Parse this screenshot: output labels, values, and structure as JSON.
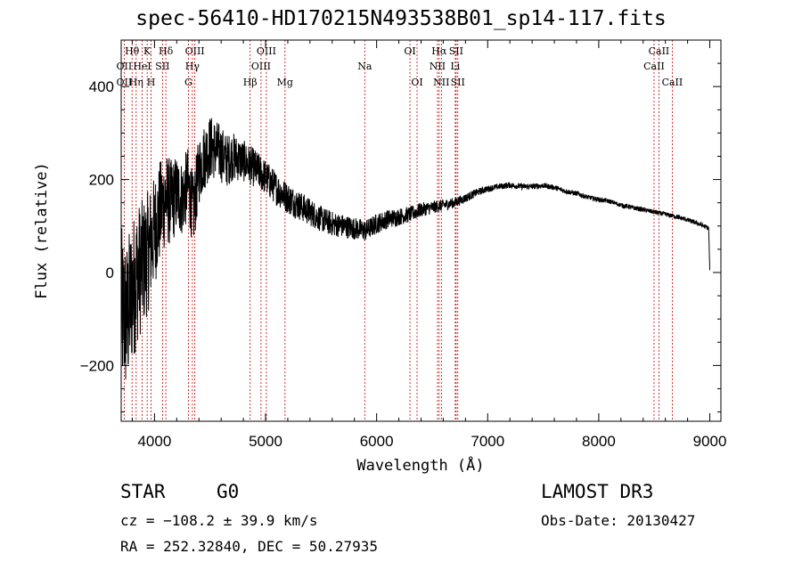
{
  "chart_data": {
    "type": "line",
    "title": "spec-56410-HD170215N493538B01_sp14-117.fits",
    "xlabel": "Wavelength (Å)",
    "ylabel": "Flux (relative)",
    "xlim": [
      3700,
      9100
    ],
    "ylim": [
      -320,
      500
    ],
    "xticks": [
      4000,
      5000,
      6000,
      7000,
      8000,
      9000
    ],
    "yticks": [
      -200,
      0,
      200,
      400
    ],
    "grid": false,
    "series": [
      {
        "name": "spectrum",
        "noise_amplitude": [
          [
            3700,
            180
          ],
          [
            3800,
            160
          ],
          [
            3900,
            140
          ],
          [
            4000,
            120
          ],
          [
            4200,
            85
          ],
          [
            4500,
            70
          ],
          [
            4800,
            45
          ],
          [
            5000,
            38
          ],
          [
            5500,
            28
          ],
          [
            6000,
            22
          ],
          [
            6500,
            14
          ],
          [
            7000,
            7
          ],
          [
            8000,
            5
          ],
          [
            9000,
            5
          ]
        ],
        "x": [
          3700,
          3750,
          3800,
          3850,
          3900,
          3950,
          4000,
          4050,
          4100,
          4150,
          4200,
          4250,
          4300,
          4350,
          4400,
          4450,
          4500,
          4550,
          4600,
          4650,
          4700,
          4750,
          4800,
          4900,
          5000,
          5100,
          5200,
          5300,
          5400,
          5500,
          5600,
          5700,
          5800,
          5900,
          6000,
          6100,
          6200,
          6300,
          6400,
          6500,
          6600,
          6700,
          6800,
          6900,
          7000,
          7100,
          7200,
          7300,
          7400,
          7500,
          7600,
          7700,
          7800,
          7900,
          8000,
          8100,
          8200,
          8300,
          8400,
          8500,
          8600,
          8700,
          8800,
          8900,
          8990,
          8995,
          9000
        ],
        "y": [
          -80,
          -100,
          -40,
          0,
          20,
          50,
          90,
          130,
          160,
          150,
          170,
          160,
          190,
          130,
          220,
          250,
          270,
          265,
          255,
          240,
          250,
          245,
          240,
          225,
          205,
          180,
          160,
          145,
          130,
          115,
          105,
          100,
          95,
          90,
          105,
          115,
          120,
          125,
          135,
          140,
          145,
          150,
          160,
          172,
          180,
          185,
          188,
          185,
          185,
          187,
          183,
          175,
          170,
          162,
          157,
          153,
          145,
          140,
          135,
          130,
          125,
          120,
          113,
          105,
          95,
          50,
          5
        ]
      }
    ],
    "lines": [
      {
        "name": "OII",
        "wavelength": 3727,
        "row": 2
      },
      {
        "name": "Hθ",
        "wavelength": 3798,
        "row": 1
      },
      {
        "name": "OII",
        "wavelength": 3727,
        "row": 3
      },
      {
        "name": "Hη",
        "wavelength": 3835,
        "row": 3
      },
      {
        "name": "HeI",
        "wavelength": 3889,
        "row": 2
      },
      {
        "name": "K",
        "wavelength": 3934,
        "row": 1
      },
      {
        "name": "H",
        "wavelength": 3969,
        "row": 3
      },
      {
        "name": "SII",
        "wavelength": 4072,
        "row": 2
      },
      {
        "name": "Hδ",
        "wavelength": 4102,
        "row": 1
      },
      {
        "name": "OIII",
        "wavelength": 4363,
        "row": 1
      },
      {
        "name": "Hγ",
        "wavelength": 4341,
        "row": 2
      },
      {
        "name": "G",
        "wavelength": 4305,
        "row": 3
      },
      {
        "name": "Hβ",
        "wavelength": 4861,
        "row": 3
      },
      {
        "name": "OIII",
        "wavelength": 5007,
        "row": 1
      },
      {
        "name": "OIII",
        "wavelength": 4959,
        "row": 2
      },
      {
        "name": "Mg",
        "wavelength": 5175,
        "row": 3
      },
      {
        "name": "Na",
        "wavelength": 5893,
        "row": 2
      },
      {
        "name": "OI",
        "wavelength": 6300,
        "row": 1
      },
      {
        "name": "OI",
        "wavelength": 6364,
        "row": 3
      },
      {
        "name": "Hα",
        "wavelength": 6563,
        "row": 1
      },
      {
        "name": "NII",
        "wavelength": 6548,
        "row": 2
      },
      {
        "name": "NII",
        "wavelength": 6583,
        "row": 3
      },
      {
        "name": "SII",
        "wavelength": 6716,
        "row": 1
      },
      {
        "name": "Li",
        "wavelength": 6708,
        "row": 2
      },
      {
        "name": "SII",
        "wavelength": 6731,
        "row": 3
      },
      {
        "name": "CaII",
        "wavelength": 8542,
        "row": 1
      },
      {
        "name": "CaII",
        "wavelength": 8498,
        "row": 2
      },
      {
        "name": "CaII",
        "wavelength": 8662,
        "row": 3
      }
    ]
  },
  "info": {
    "class": "STAR",
    "subclass": "G0",
    "survey": "LAMOST DR3",
    "cz": "cz = −108.2 ± 39.9 km/s",
    "obs_date": "Obs-Date: 20130427",
    "coords": "RA = 252.32840, DEC =  50.27935"
  },
  "colors": {
    "spectrum": "#000000",
    "line_markers": "#cc0000",
    "axes": "#000000"
  }
}
